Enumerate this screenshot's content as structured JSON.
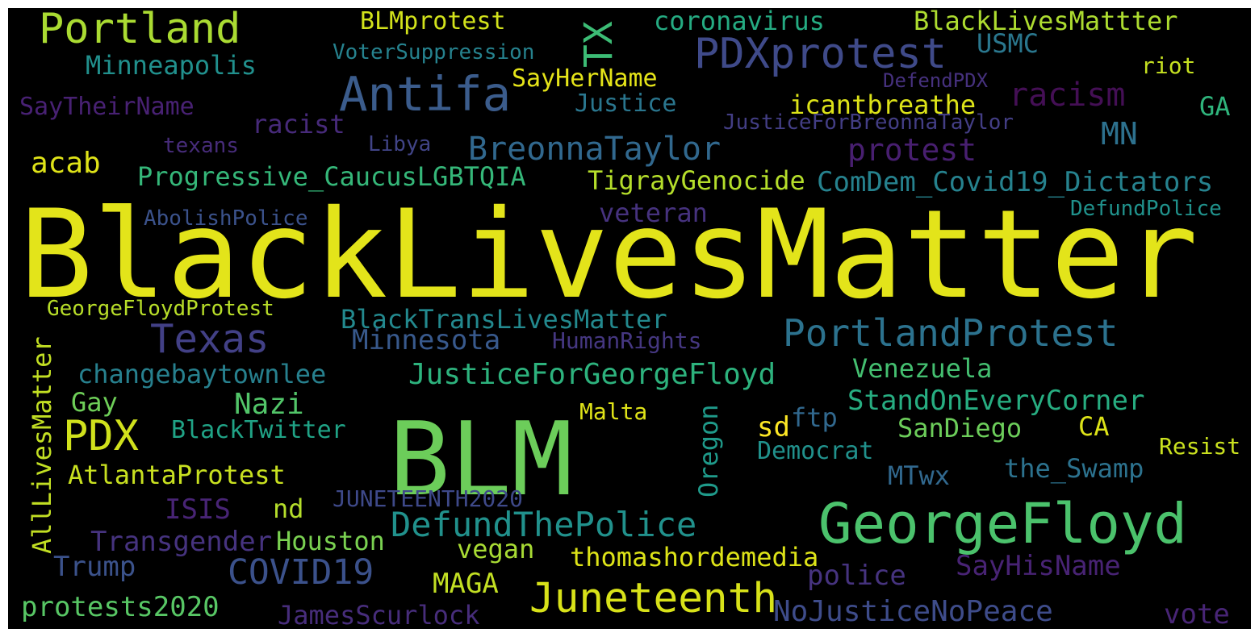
{
  "words": [
    {
      "text": "BlackLivesMatter",
      "color": "#e3e41a"
    },
    {
      "text": "BLM",
      "color": "#6ccd5a"
    },
    {
      "text": "GeorgeFloyd",
      "color": "#4bc26c"
    },
    {
      "text": "Portland",
      "color": "#aadb32"
    },
    {
      "text": "Antifa",
      "color": "#3b5c8c"
    },
    {
      "text": "PDXprotest",
      "color": "#3f4a89"
    },
    {
      "text": "TX",
      "color": "#3cbc75"
    },
    {
      "text": "Texas",
      "color": "#424086"
    },
    {
      "text": "PortlandProtest",
      "color": "#2c728e"
    },
    {
      "text": "PDX",
      "color": "#d0e11c"
    },
    {
      "text": "Juneteenth",
      "color": "#d8e219"
    },
    {
      "text": "DefundThePolice",
      "color": "#21918c"
    },
    {
      "text": "JusticeForGeorgeFloyd",
      "color": "#2db27d"
    },
    {
      "text": "COVID19",
      "color": "#3b518b"
    },
    {
      "text": "BreonnaTaylor",
      "color": "#31688e"
    },
    {
      "text": "protest",
      "color": "#481f70"
    },
    {
      "text": "racism",
      "color": "#440f55"
    },
    {
      "text": "StandOnEveryCorner",
      "color": "#27ad81"
    },
    {
      "text": "NoJusticeNoPeace",
      "color": "#3e4c8a"
    },
    {
      "text": "ComDem_Covid19_Dictators",
      "color": "#26828e"
    },
    {
      "text": "AllLivesMatter",
      "color": "#c2df23"
    },
    {
      "text": "Oregon",
      "color": "#1f9a8a"
    },
    {
      "text": "Minneapolis",
      "color": "#21908d"
    },
    {
      "text": "SayTheirName",
      "color": "#482173"
    },
    {
      "text": "coronavirus",
      "color": "#25ab82"
    },
    {
      "text": "BlackLivesMattter",
      "color": "#addc30"
    },
    {
      "text": "BLMprotest",
      "color": "#d2e21b"
    },
    {
      "text": "VoterSuppression",
      "color": "#26828e"
    },
    {
      "text": "USMC",
      "color": "#2a778e"
    },
    {
      "text": "SayHerName",
      "color": "#e5e419"
    },
    {
      "text": "Justice",
      "color": "#2a768e"
    },
    {
      "text": "icantbreathe",
      "color": "#dde318"
    },
    {
      "text": "DefendPDX",
      "color": "#46317e"
    },
    {
      "text": "riot",
      "color": "#c5e021"
    },
    {
      "text": "GA",
      "color": "#2fb47c"
    },
    {
      "text": "JusticeForBreonnaTaylor",
      "color": "#433e85"
    },
    {
      "text": "MN",
      "color": "#2d718e"
    },
    {
      "text": "racist",
      "color": "#472a7a"
    },
    {
      "text": "acab",
      "color": "#dfe318"
    },
    {
      "text": "texans",
      "color": "#472c7a"
    },
    {
      "text": "Libya",
      "color": "#414487"
    },
    {
      "text": "Progressive_CaucusLGBTQIA",
      "color": "#35b779"
    },
    {
      "text": "TigrayGenocide",
      "color": "#b5de2b"
    },
    {
      "text": "veteran",
      "color": "#46327e"
    },
    {
      "text": "AbolishPolice",
      "color": "#3b528b"
    },
    {
      "text": "DefundPolice",
      "color": "#20928c"
    },
    {
      "text": "GeorgeFloydProtest",
      "color": "#b8de29"
    },
    {
      "text": "BlackTransLivesMatter",
      "color": "#23898e"
    },
    {
      "text": "Minnesota",
      "color": "#38598c"
    },
    {
      "text": "HumanRights",
      "color": "#453781"
    },
    {
      "text": "changebaytownlee",
      "color": "#27808e"
    },
    {
      "text": "Venezuela",
      "color": "#44bf70"
    },
    {
      "text": "Gay",
      "color": "#6ece58"
    },
    {
      "text": "Nazi",
      "color": "#52c569"
    },
    {
      "text": "Malta",
      "color": "#dfe318"
    },
    {
      "text": "ftp",
      "color": "#31688e"
    },
    {
      "text": "sd",
      "color": "#fde725"
    },
    {
      "text": "BlackTwitter",
      "color": "#20a386"
    },
    {
      "text": "SanDiego",
      "color": "#6ccd5a"
    },
    {
      "text": "CA",
      "color": "#dde318"
    },
    {
      "text": "Democrat",
      "color": "#21918c"
    },
    {
      "text": "Resist",
      "color": "#cae11f"
    },
    {
      "text": "AtlantaProtest",
      "color": "#c8e020"
    },
    {
      "text": "the_Swamp",
      "color": "#2c728e"
    },
    {
      "text": "MTwx",
      "color": "#31688e"
    },
    {
      "text": "ISIS",
      "color": "#482475"
    },
    {
      "text": "nd",
      "color": "#b5de2b"
    },
    {
      "text": "JUNETEENTH2020",
      "color": "#3e4989"
    },
    {
      "text": "Transgender",
      "color": "#46337f"
    },
    {
      "text": "Houston",
      "color": "#7ad151"
    },
    {
      "text": "vegan",
      "color": "#a8db34"
    },
    {
      "text": "thomashordemedia",
      "color": "#dde318"
    },
    {
      "text": "Trump",
      "color": "#3b528b"
    },
    {
      "text": "MAGA",
      "color": "#c2df23"
    },
    {
      "text": "police",
      "color": "#46337f"
    },
    {
      "text": "SayHisName",
      "color": "#482374"
    },
    {
      "text": "protests2020",
      "color": "#58c765"
    },
    {
      "text": "JamesScurlock",
      "color": "#472d7b"
    },
    {
      "text": "vote",
      "color": "#482576"
    }
  ]
}
